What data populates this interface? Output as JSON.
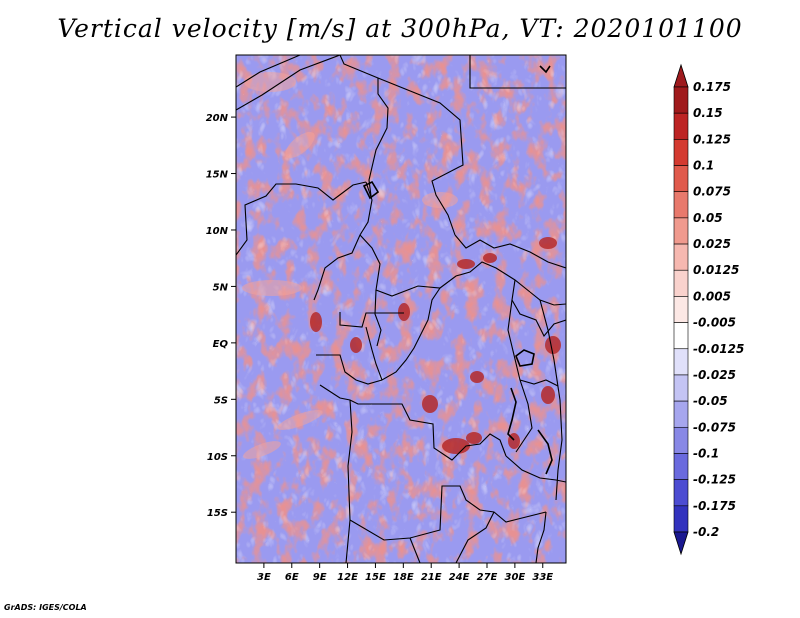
{
  "title": "Vertical velocity [m/s] at 300hPa, VT: 2020101100",
  "credit": "GrADS: IGES/COLA",
  "map": {
    "region": "Central Africa",
    "lon_range": [
      0,
      35.5
    ],
    "lat_range": [
      -19.5,
      25.5
    ],
    "lat_ticks": [
      {
        "value": 20,
        "label": "20N"
      },
      {
        "value": 15,
        "label": "15N"
      },
      {
        "value": 10,
        "label": "10N"
      },
      {
        "value": 5,
        "label": "5N"
      },
      {
        "value": 0,
        "label": "EQ"
      },
      {
        "value": -5,
        "label": "5S"
      },
      {
        "value": -10,
        "label": "10S"
      },
      {
        "value": -15,
        "label": "15S"
      }
    ],
    "lon_ticks": [
      {
        "value": 3,
        "label": "3E"
      },
      {
        "value": 6,
        "label": "6E"
      },
      {
        "value": 9,
        "label": "9E"
      },
      {
        "value": 12,
        "label": "12E"
      },
      {
        "value": 15,
        "label": "15E"
      },
      {
        "value": 18,
        "label": "18E"
      },
      {
        "value": 21,
        "label": "21E"
      },
      {
        "value": 24,
        "label": "24E"
      },
      {
        "value": 27,
        "label": "27E"
      },
      {
        "value": 30,
        "label": "30E"
      },
      {
        "value": 33,
        "label": "33E"
      }
    ]
  },
  "colorbar": {
    "levels": [
      {
        "label": "0.175",
        "color": "#a01a1c"
      },
      {
        "label": "0.15",
        "color": "#bd2424"
      },
      {
        "label": "0.125",
        "color": "#d43a30"
      },
      {
        "label": "0.1",
        "color": "#e05a4c"
      },
      {
        "label": "0.075",
        "color": "#e8796c"
      },
      {
        "label": "0.05",
        "color": "#f09a8e"
      },
      {
        "label": "0.025",
        "color": "#f6b8b0"
      },
      {
        "label": "0.0125",
        "color": "#f9d2cd"
      },
      {
        "label": "0.005",
        "color": "#fce8e5"
      },
      {
        "label": "-0.005",
        "color": "#ffffff"
      },
      {
        "label": "-0.0125",
        "color": "#e0e0fa"
      },
      {
        "label": "-0.025",
        "color": "#c4c4f4"
      },
      {
        "label": "-0.05",
        "color": "#a6a6ee"
      },
      {
        "label": "-0.075",
        "color": "#8888e6"
      },
      {
        "label": "-0.1",
        "color": "#6a6ade"
      },
      {
        "label": "-0.125",
        "color": "#4c4cd2"
      },
      {
        "label": "-0.175",
        "color": "#3232be"
      },
      {
        "label": "-0.2",
        "color": "#1e1ea4"
      }
    ],
    "top_color": "#9e1a1e",
    "bottom_color": "#1a1890"
  }
}
